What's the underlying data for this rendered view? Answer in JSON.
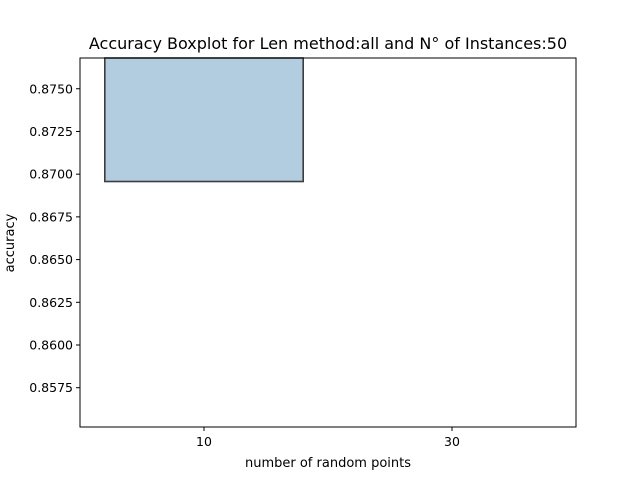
{
  "chart_data": {
    "type": "box",
    "title": "Accuracy Boxplot for Len method:all and N° of Instances:50",
    "xlabel": "number of random points",
    "ylabel": "accuracy",
    "categories": [
      "10",
      "30"
    ],
    "ylim": [
      0.8552,
      0.8768
    ],
    "yticks": [
      "0.8575",
      "0.8600",
      "0.8625",
      "0.8650",
      "0.8675",
      "0.8700",
      "0.8725",
      "0.8750"
    ],
    "grid": false,
    "boxes": [
      {
        "category": "10",
        "q1": 0.86957,
        "q3": 0.8768
      },
      {
        "category": "30",
        "q1": 0.8552,
        "q3": 0.8552
      }
    ],
    "colors": {
      "box_fill": "#b3cde0",
      "box_edge": "#3d3d3d",
      "axis": "#000000"
    }
  }
}
